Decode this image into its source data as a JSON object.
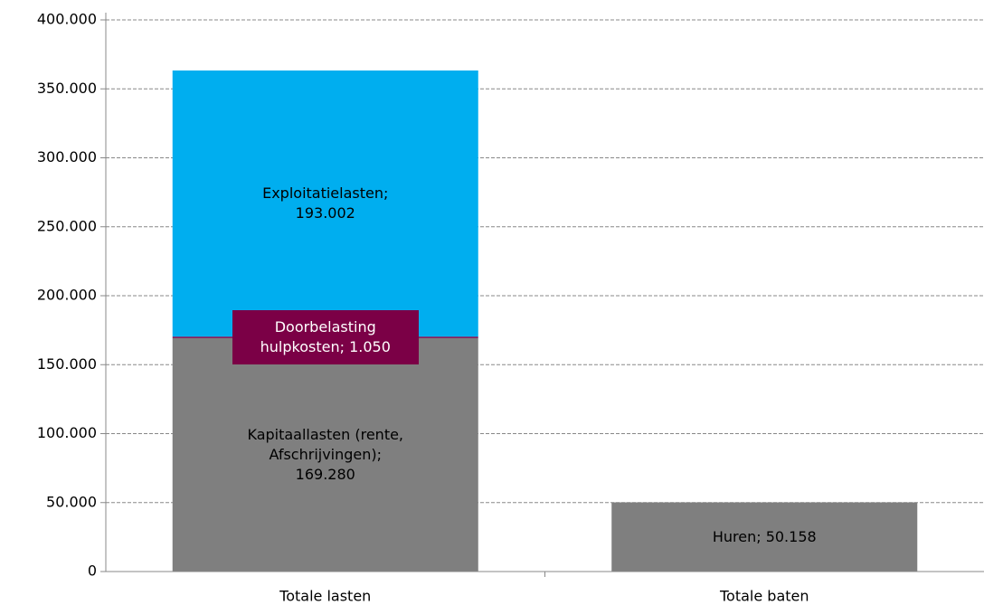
{
  "chart_data": {
    "type": "stacked_bar",
    "categories": [
      "Totale lasten",
      "Totale baten"
    ],
    "series": [
      {
        "color": "#7f7f7f",
        "values": [
          169280,
          50158
        ],
        "value_labels": [
          "Kapitaallasten (rente, Afschrijvingen); 169.280",
          "Huren; 50.158"
        ]
      },
      {
        "color": "#7b0046",
        "values": [
          1050,
          null
        ],
        "value_labels": [
          "Doorbelasting hulpkosten; 1.050",
          null
        ]
      },
      {
        "color": "#00aeef",
        "values": [
          193002,
          null
        ],
        "value_labels": [
          "Exploitatielasten; 193.002",
          null
        ]
      }
    ],
    "ylim": [
      0,
      400000
    ],
    "yticks": [
      0,
      {
        "value": 50000,
        "label": "50.000"
      },
      {
        "value": 100000,
        "label": "100.000"
      },
      {
        "value": 150000,
        "label": "150.000"
      },
      {
        "value": 200000,
        "label": "200.000"
      },
      {
        "value": 250000,
        "label": "250.000"
      },
      {
        "value": 300000,
        "label": "300.000"
      },
      {
        "value": 350000,
        "label": "350.000"
      },
      {
        "value": 400000,
        "label": "400.000"
      }
    ],
    "grid": true
  }
}
